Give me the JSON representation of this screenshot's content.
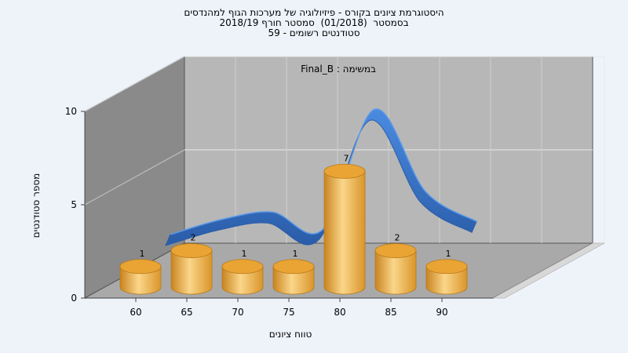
{
  "chart_data": {
    "type": "bar",
    "title_lines": [
      "היסטוגרמת ציונים בקורס - פיזיולוגיה של מערכות הגוף למהנדסים",
      "בסמסטר  (01/2018)  סמסטר חורף 2018/19",
      "סטודנטים רשומים - 59"
    ],
    "categories": [
      "60",
      "65",
      "70",
      "75",
      "80",
      "85",
      "90"
    ],
    "series": [
      {
        "name": "Final_B : במשימה",
        "values": [
          1,
          2,
          1,
          1,
          7,
          2,
          1
        ]
      }
    ],
    "curve_values": [
      0.8,
      1.6,
      2.0,
      1.1,
      7.5,
      3.1,
      1.5
    ],
    "xlabel": "טווח ציונים",
    "ylabel": "מספר סטודנטים",
    "yticks": [
      0,
      5,
      10
    ],
    "ylim": [
      0,
      10
    ],
    "grid": true,
    "legend_position": "top-center",
    "colors": {
      "bar": "#e6a83b",
      "bar_light": "#fbd68a",
      "bar_dark": "#c98420",
      "curve": "#3c7ad4",
      "curve_dark": "#2b5fae",
      "back_wall": "#b7b7b7",
      "left_wall": "#8a8a8a",
      "floor": "#a9a9a9",
      "background": "#eef3fa"
    }
  }
}
